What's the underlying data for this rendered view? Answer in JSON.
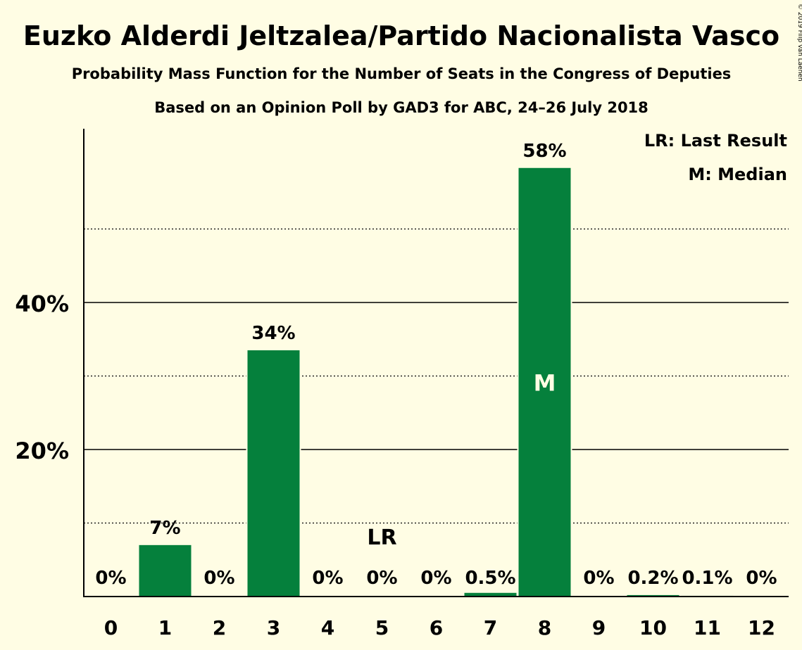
{
  "chart_data": {
    "type": "bar",
    "title": "Euzko Alderdi Jeltzalea/Partido Nacionalista Vasco",
    "subtitle": "Probability Mass Function for the Number of Seats in the Congress of Deputies",
    "subtitle2": "Based on an Opinion Poll by GAD3 for ABC, 24–26 July 2018",
    "copyright": "© 2019 Filip van Laenen",
    "legend": [
      "LR: Last Result",
      "M: Median"
    ],
    "legend_position": "top-right",
    "categories": [
      "0",
      "1",
      "2",
      "3",
      "4",
      "5",
      "6",
      "7",
      "8",
      "9",
      "10",
      "11",
      "12"
    ],
    "values": [
      0,
      7.0,
      0,
      33.5,
      0,
      0,
      0,
      0.5,
      58.3,
      0,
      0.2,
      0.1,
      0
    ],
    "labels": [
      "0%",
      "7%",
      "0%",
      "34%",
      "0%",
      "0%",
      "0%",
      "0.5%",
      "58%",
      "0%",
      "0.2%",
      "0.1%",
      "0%"
    ],
    "ylim": [
      0,
      63.7
    ],
    "yticks": [
      {
        "value": 20,
        "label": "20%"
      },
      {
        "value": 40,
        "label": "40%"
      }
    ],
    "minor_gridlines": [
      10,
      30,
      50
    ],
    "last_result_index": 5,
    "last_result_label": "LR",
    "median_index": 8,
    "median_label": "M",
    "grid": true,
    "bar_color": "#05803C",
    "background_color": "#FFFDE4"
  }
}
